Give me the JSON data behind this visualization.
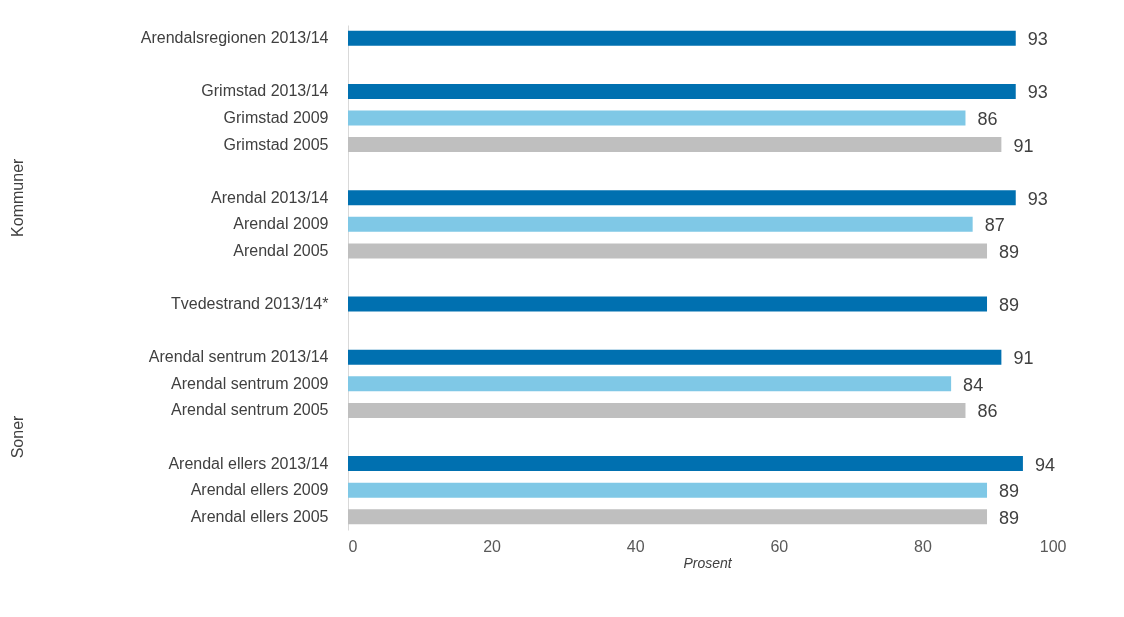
{
  "chart_data": {
    "type": "bar",
    "orientation": "horizontal",
    "categories": [
      "Arendalsregionen 2013/14",
      null,
      "Grimstad 2013/14",
      "Grimstad 2009",
      "Grimstad 2005",
      null,
      "Arendal 2013/14",
      "Arendal 2009",
      "Arendal 2005",
      null,
      "Tvedestrand 2013/14*",
      null,
      "Arendal sentrum 2013/14",
      "Arendal sentrum 2009",
      "Arendal sentrum 2005",
      null,
      "Arendal ellers 2013/14",
      "Arendal ellers 2009",
      "Arendal ellers 2005"
    ],
    "values": [
      93,
      null,
      93,
      86,
      91,
      null,
      93,
      87,
      89,
      null,
      89,
      null,
      91,
      84,
      86,
      null,
      94,
      89,
      89
    ],
    "colors": [
      "#0070b0",
      null,
      "#0070b0",
      "#7fc8e6",
      "#bfbfbf",
      null,
      "#0070b0",
      "#7fc8e6",
      "#bfbfbf",
      null,
      "#0070b0",
      null,
      "#0070b0",
      "#7fc8e6",
      "#bfbfbf",
      null,
      "#0070b0",
      "#7fc8e6",
      "#bfbfbf"
    ],
    "xlim": [
      0,
      100
    ],
    "xticks": [
      0,
      20,
      40,
      60,
      80,
      100
    ],
    "xlabel": "Prosent",
    "data_labels": true,
    "grid": false,
    "annotations": [
      "Kommuner",
      "Soner"
    ]
  }
}
